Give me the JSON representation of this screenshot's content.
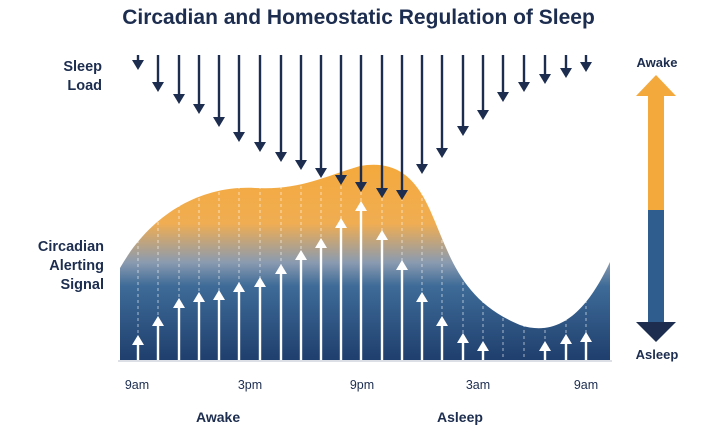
{
  "title": "Circadian and Homeostatic Regulation of Sleep",
  "labels": {
    "sleep_load": "Sleep\nLoad",
    "circadian_signal": "Circadian\nAlerting\nSignal"
  },
  "x_axis": {
    "ticks": [
      "9am",
      "3pm",
      "9pm",
      "3am",
      "9am"
    ],
    "states": [
      "Awake",
      "Asleep"
    ]
  },
  "scale": {
    "top": "Awake",
    "bottom": "Asleep"
  },
  "colors": {
    "navy": "#1c2d4f",
    "orange": "#f4a93c",
    "blue": "#2f5d8e",
    "arrow_up": "#ffffff"
  }
}
